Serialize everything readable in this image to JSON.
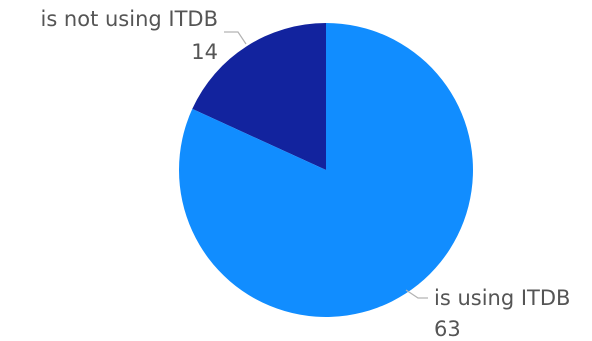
{
  "chart_data": {
    "type": "pie",
    "title": "",
    "slices": [
      {
        "label": "is not using ITDB",
        "value": 14,
        "value_label": "14",
        "color": "#12239E"
      },
      {
        "label": "is using ITDB",
        "value": 63,
        "value_label": "63",
        "color": "#118DFF"
      }
    ],
    "start_angle_deg": 0,
    "direction": "counterclockwise",
    "legend": "none",
    "label_style": "outside-with-leader-lines",
    "label_color": "#555555",
    "leader_line_color": "#b3b3b3"
  }
}
